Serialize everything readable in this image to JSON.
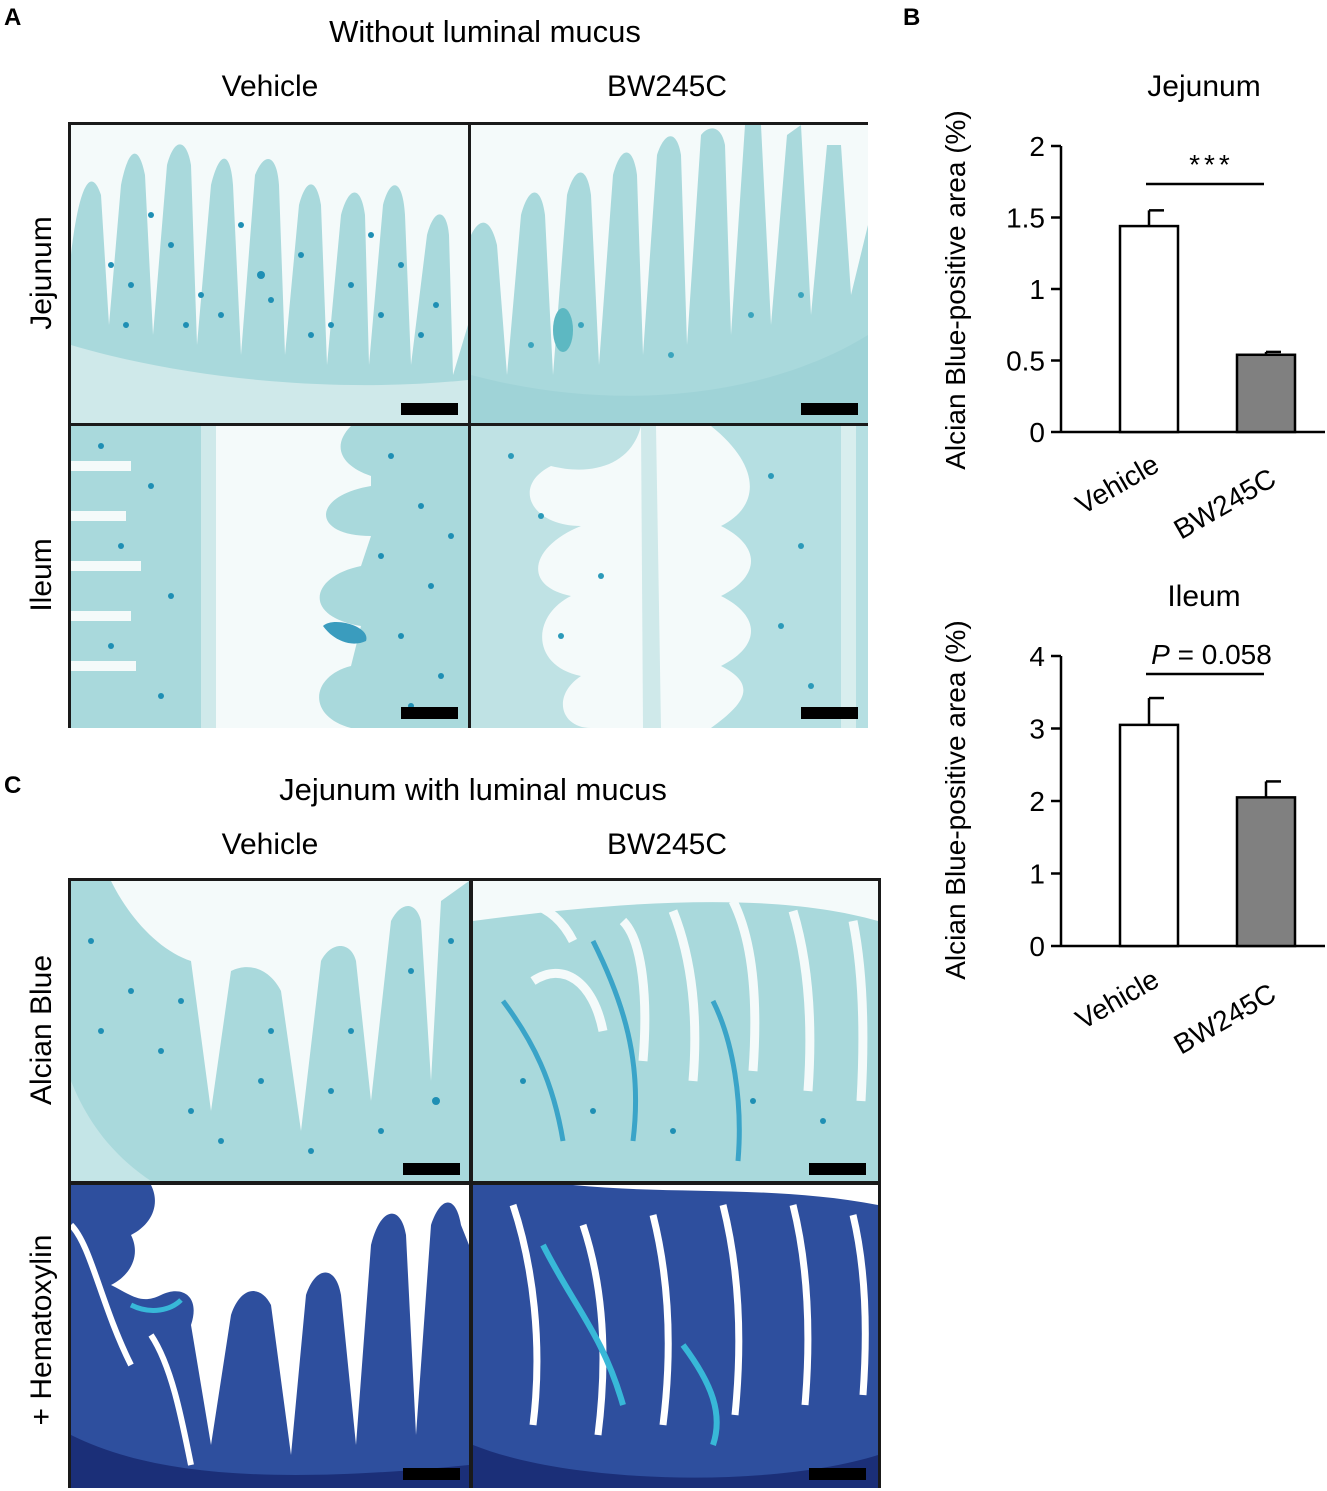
{
  "panels": {
    "A": {
      "letter": "A",
      "title": "Without luminal mucus",
      "columns": [
        "Vehicle",
        "BW245C"
      ],
      "rows": [
        "Jejunum",
        "Ileum"
      ]
    },
    "B": {
      "letter": "B"
    },
    "C": {
      "letter": "C",
      "title": "Jejunum with luminal mucus",
      "columns": [
        "Vehicle",
        "BW245C"
      ],
      "rows": [
        "Alcian Blue",
        "+ Hematoxylin"
      ]
    }
  },
  "colors": {
    "alcian_background": "#cfe9ea",
    "alcian_tissue": "#a9d9dc",
    "alcian_goblet": "#1f8fb4",
    "hematoxylin_tissue": "#2e4f9e",
    "hematoxylin_dark": "#1b2f78",
    "vehicle_bar": "#ffffff",
    "bw245c_bar": "#808080"
  },
  "chart_data": [
    {
      "type": "bar",
      "title": "Jejunum",
      "ylabel": "Alcian Blue-positive area (%)",
      "categories": [
        "Vehicle",
        "BW245C"
      ],
      "values": [
        1.44,
        0.54
      ],
      "errors": [
        0.11,
        0.02
      ],
      "ylim": [
        0,
        2
      ],
      "yticks": [
        "0",
        "0.5",
        "1",
        "1.5",
        "2"
      ],
      "ytick_values": [
        0,
        0.5,
        1,
        1.5,
        2
      ],
      "significance": "***"
    },
    {
      "type": "bar",
      "title": "Ileum",
      "ylabel": "Alcian Blue-positive area (%)",
      "categories": [
        "Vehicle",
        "BW245C"
      ],
      "values": [
        3.05,
        2.05
      ],
      "errors": [
        0.37,
        0.22
      ],
      "ylim": [
        0,
        4
      ],
      "yticks": [
        "0",
        "1",
        "2",
        "3",
        "4"
      ],
      "ytick_values": [
        0,
        1,
        2,
        3,
        4
      ],
      "significance_italic": "P",
      "significance": " = 0.058"
    }
  ]
}
